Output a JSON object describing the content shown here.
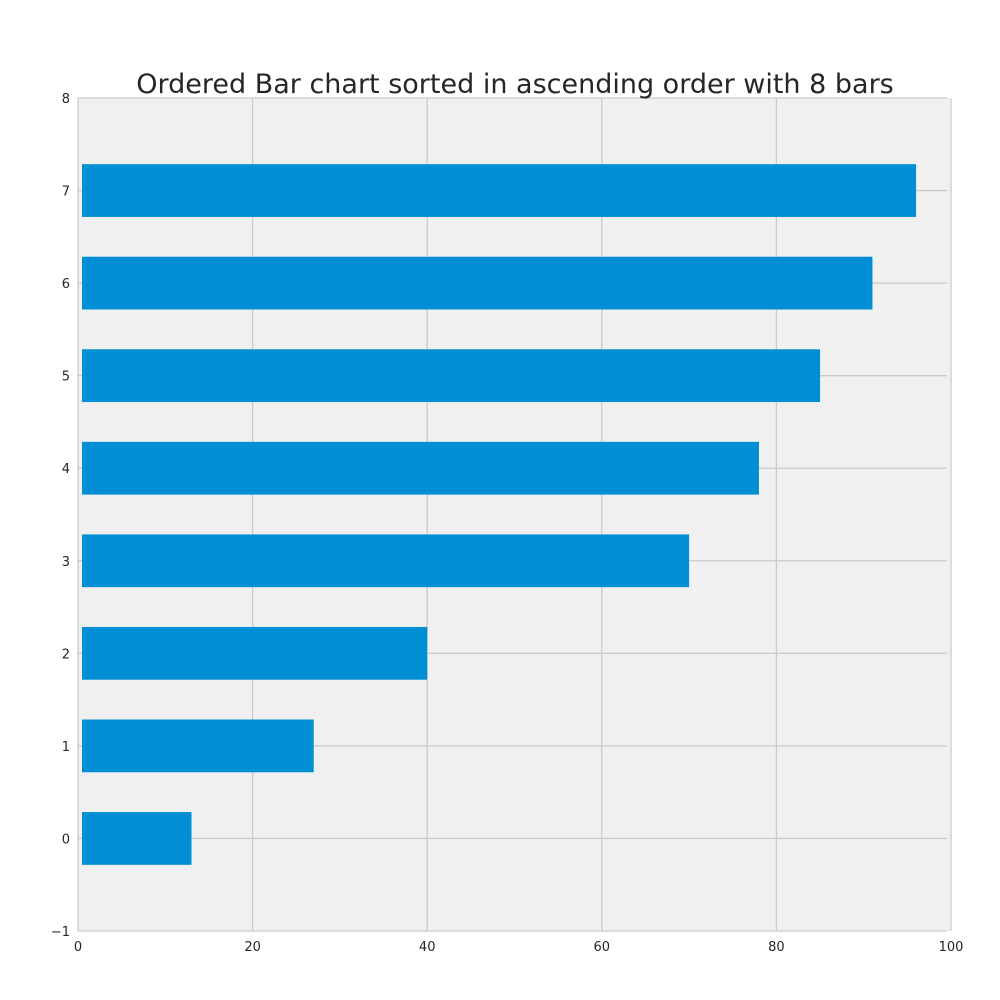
{
  "chart_data": {
    "type": "bar",
    "orientation": "horizontal",
    "title": "Ordered Bar chart sorted in ascending order with 8 bars",
    "xlabel": "",
    "ylabel": "",
    "categories": [
      "0",
      "1",
      "2",
      "3",
      "4",
      "5",
      "6",
      "7"
    ],
    "values": [
      13,
      27,
      40,
      70,
      78,
      85,
      91,
      96
    ],
    "xlim": [
      0,
      100
    ],
    "ylim": [
      -1,
      8
    ],
    "xticks": [
      "0",
      "20",
      "40",
      "60",
      "80",
      "100"
    ],
    "yticks": [
      "−1",
      "0",
      "1",
      "2",
      "3",
      "4",
      "5",
      "6",
      "7",
      "8"
    ],
    "grid": true,
    "colors": {
      "bar": "#008fd5",
      "plot_background": "#f0f0f0",
      "grid": "#cbcbcb"
    }
  }
}
